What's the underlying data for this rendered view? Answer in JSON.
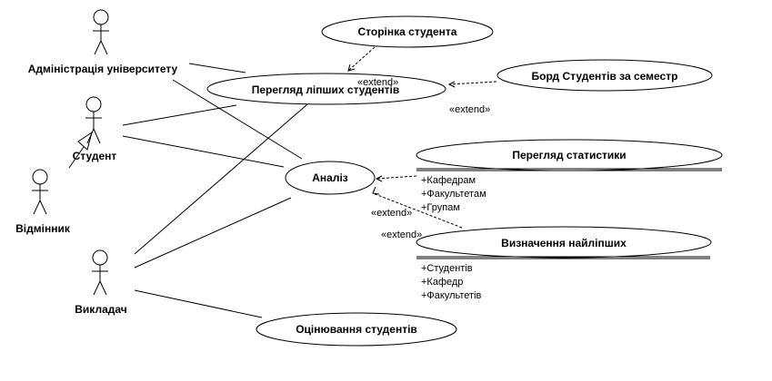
{
  "actors": {
    "admin": "Адміністрація університету",
    "student": "Студент",
    "excellent": "Відмінник",
    "teacher": "Викладач"
  },
  "use_cases": {
    "student_page": "Сторінка студента",
    "top_students": "Перегляд ліпших студентів",
    "board": "Борд Студентів за семестр",
    "analysis": "Аналіз",
    "statistics": "Перегляд статистики",
    "best": "Визначення найліпших",
    "grading": "Оцінювання студентів"
  },
  "extension_points": {
    "statistics": [
      "+Кафедрам",
      "+Факультетам",
      "+Групам"
    ],
    "best": [
      "+Студентів",
      "+Кафедр",
      "+Факультетів"
    ]
  },
  "stereotype": "«extend»",
  "colors": {
    "stroke": "#000000",
    "fill": "#ffffff"
  }
}
